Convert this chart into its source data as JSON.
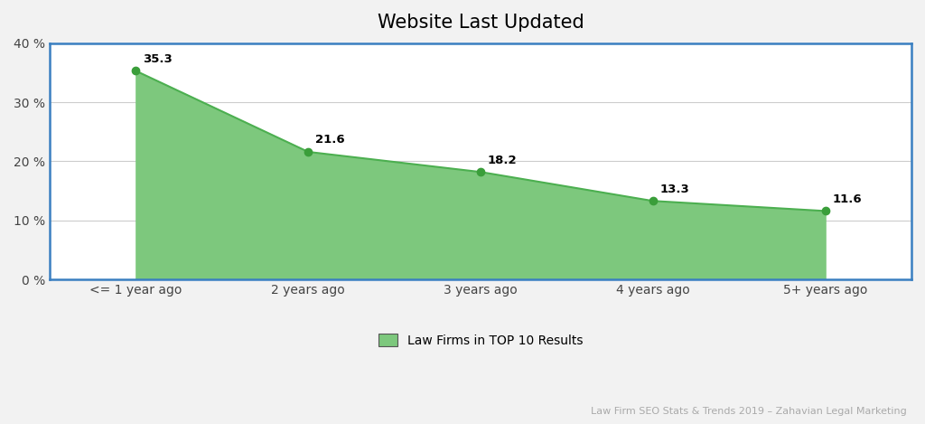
{
  "title": "Website Last Updated",
  "categories": [
    "<= 1 year ago",
    "2 years ago",
    "3 years ago",
    "4 years ago",
    "5+ years ago"
  ],
  "values": [
    35.3,
    21.6,
    18.2,
    13.3,
    11.6
  ],
  "line_color": "#4caf50",
  "fill_color": "#7dc87d",
  "marker_color": "#3a9e3a",
  "ylim": [
    0,
    40
  ],
  "yticks": [
    0,
    10,
    20,
    30,
    40
  ],
  "ytick_labels": [
    "0 %",
    "10 %",
    "20 %",
    "30 %",
    "40 %"
  ],
  "legend_label": "Law Firms in TOP 10 Results",
  "footnote": "Law Firm SEO Stats & Trends 2019 – Zahavian Legal Marketing",
  "background_color": "#f2f2f2",
  "plot_bg_color": "#ffffff",
  "border_color": "#3a7fc1",
  "title_fontsize": 15,
  "label_fontsize": 10,
  "tick_fontsize": 10,
  "annotation_fontsize": 9.5
}
